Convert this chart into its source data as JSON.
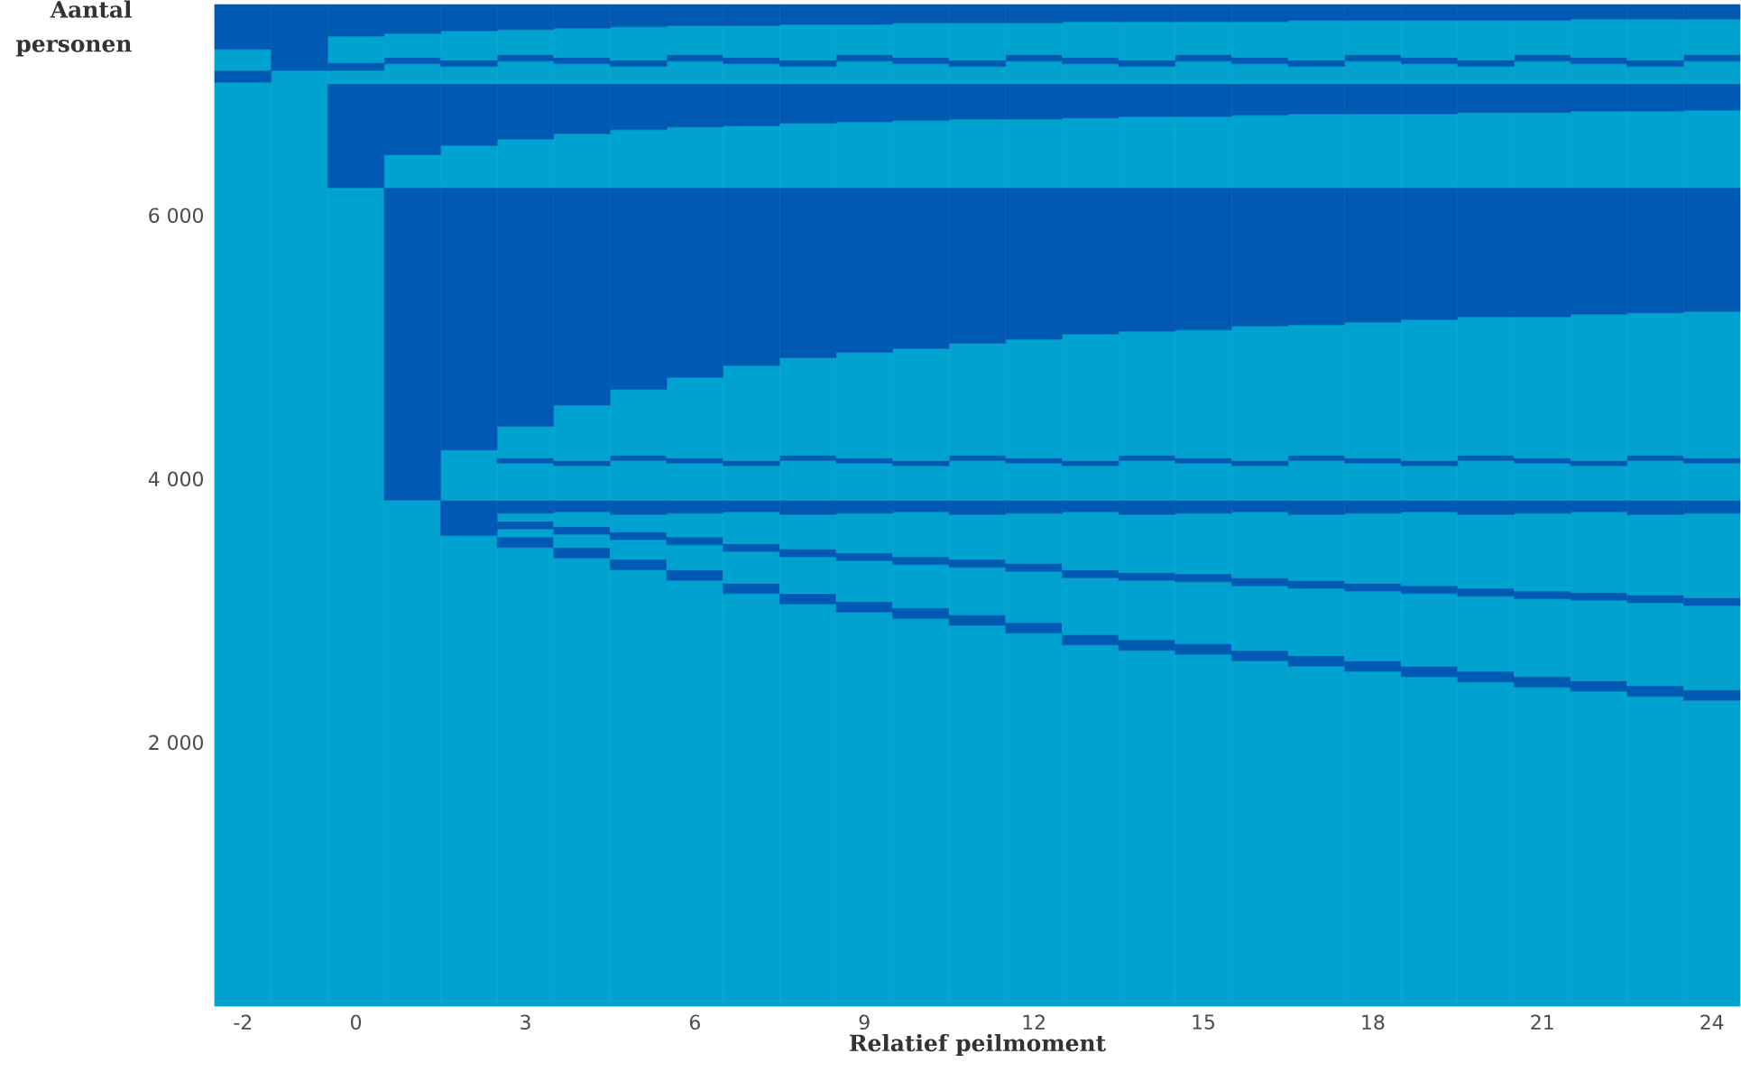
{
  "chart_data": {
    "type": "bar",
    "stacked": true,
    "xlabel": "Relatief peilmoment",
    "ylabel": "Aantal personen",
    "x": [
      -2,
      -1,
      0,
      1,
      2,
      3,
      4,
      5,
      6,
      7,
      8,
      9,
      10,
      11,
      12,
      13,
      14,
      15,
      16,
      17,
      18,
      19,
      20,
      21,
      22,
      23,
      24
    ],
    "xlim": [
      -2.5,
      24.5
    ],
    "xticks": [
      -2,
      0,
      3,
      6,
      9,
      12,
      15,
      18,
      21,
      24
    ],
    "ylim": [
      0,
      7600
    ],
    "yticks": [
      {
        "value": 2000,
        "label": "2 000"
      },
      {
        "value": 4000,
        "label": "4 000"
      },
      {
        "value": 6000,
        "label": "6 000"
      }
    ],
    "series": [
      {
        "color": "#00a3cf",
        "values": [
          7010,
          7100,
          6210,
          3840,
          3570,
          3480,
          3400,
          3310,
          3230,
          3130,
          3050,
          2990,
          2940,
          2890,
          2830,
          2740,
          2700,
          2670,
          2620,
          2580,
          2540,
          2500,
          2460,
          2420,
          2390,
          2350,
          2320
        ]
      },
      {
        "color": "#0059b3",
        "values": [
          90,
          null,
          null,
          null,
          null,
          80,
          80,
          80,
          80,
          80,
          80,
          80,
          80,
          80,
          80,
          80,
          80,
          80,
          80,
          80,
          80,
          80,
          80,
          80,
          80,
          80,
          80
        ]
      },
      {
        "color": "#00a3cf",
        "values": [
          160,
          null,
          null,
          null,
          null,
          60,
          100,
          150,
          190,
          240,
          280,
          310,
          330,
          360,
          390,
          430,
          450,
          470,
          490,
          510,
          530,
          550,
          570,
          590,
          610,
          630,
          640
        ]
      },
      {
        "color": "#0059b3",
        "values": [
          null,
          null,
          null,
          null,
          null,
          60,
          60,
          60,
          60,
          60,
          60,
          60,
          60,
          60,
          60,
          60,
          60,
          60,
          60,
          60,
          60,
          60,
          60,
          60,
          60,
          60,
          60
        ]
      },
      {
        "color": "#00a3cf",
        "values": [
          null,
          null,
          null,
          null,
          null,
          60,
          110,
          130,
          180,
          240,
          260,
          300,
          340,
          340,
          380,
          440,
          440,
          460,
          500,
          500,
          530,
          560,
          560,
          590,
          610,
          610,
          640
        ]
      },
      {
        "color": "#0059b3",
        "values": [
          null,
          null,
          null,
          null,
          270,
          100,
          90,
          110,
          100,
          90,
          110,
          100,
          90,
          110,
          100,
          90,
          110,
          100,
          90,
          110,
          100,
          90,
          110,
          100,
          90,
          110,
          100
        ]
      },
      {
        "color": "#00a3cf",
        "values": [
          null,
          null,
          null,
          null,
          380,
          280,
          260,
          300,
          280,
          260,
          300,
          280,
          260,
          300,
          280,
          260,
          300,
          280,
          260,
          300,
          280,
          260,
          300,
          280,
          260,
          300,
          280
        ]
      },
      {
        "color": "#0059b3",
        "values": [
          null,
          null,
          null,
          null,
          null,
          40,
          40,
          40,
          40,
          40,
          40,
          40,
          40,
          40,
          40,
          40,
          40,
          40,
          40,
          40,
          40,
          40,
          40,
          40,
          40,
          40,
          40
        ]
      },
      {
        "color": "#00a3cf",
        "values": [
          null,
          null,
          null,
          null,
          null,
          240,
          420,
          500,
          610,
          720,
          740,
          800,
          850,
          850,
          900,
          960,
          940,
          970,
          1020,
          990,
          1030,
          1070,
          1050,
          1070,
          1110,
          1080,
          1110
        ]
      },
      {
        "color": "#0059b3",
        "values": [
          null,
          null,
          null,
          2370,
          1990,
          1810,
          1650,
          1530,
          1440,
          1350,
          1290,
          1250,
          1220,
          1180,
          1150,
          1110,
          1090,
          1080,
          1050,
          1040,
          1020,
          1000,
          980,
          980,
          960,
          950,
          940
        ]
      },
      {
        "color": "#00a3cf",
        "values": [
          null,
          null,
          null,
          250,
          320,
          370,
          410,
          440,
          460,
          470,
          490,
          500,
          510,
          520,
          520,
          530,
          540,
          540,
          550,
          560,
          560,
          560,
          570,
          570,
          580,
          580,
          590
        ]
      },
      {
        "color": "#0059b3",
        "values": [
          null,
          null,
          790,
          540,
          470,
          420,
          380,
          350,
          330,
          320,
          300,
          290,
          280,
          270,
          270,
          260,
          250,
          250,
          240,
          230,
          230,
          230,
          220,
          220,
          210,
          210,
          200
        ]
      },
      {
        "color": "#00a3cf",
        "values": [
          null,
          null,
          100,
          150,
          130,
          170,
          150,
          130,
          170,
          150,
          130,
          170,
          150,
          130,
          170,
          150,
          130,
          170,
          150,
          130,
          170,
          150,
          130,
          170,
          150,
          130,
          170
        ]
      },
      {
        "color": "#0059b3",
        "values": [
          null,
          null,
          60,
          50,
          50,
          50,
          50,
          50,
          50,
          50,
          50,
          50,
          50,
          50,
          50,
          50,
          50,
          50,
          50,
          50,
          50,
          50,
          50,
          50,
          50,
          50,
          50
        ]
      },
      {
        "color": "#00a3cf",
        "values": [
          null,
          null,
          200,
          180,
          220,
          190,
          220,
          250,
          220,
          240,
          270,
          230,
          260,
          280,
          240,
          270,
          290,
          250,
          270,
          300,
          260,
          280,
          300,
          260,
          290,
          310,
          270
        ]
      },
      {
        "color": "#0059b3",
        "values": [
          340,
          500,
          240,
          220,
          200,
          190,
          180,
          170,
          160,
          160,
          150,
          150,
          140,
          140,
          140,
          130,
          130,
          130,
          130,
          120,
          120,
          120,
          120,
          120,
          110,
          110,
          110
        ]
      }
    ]
  }
}
